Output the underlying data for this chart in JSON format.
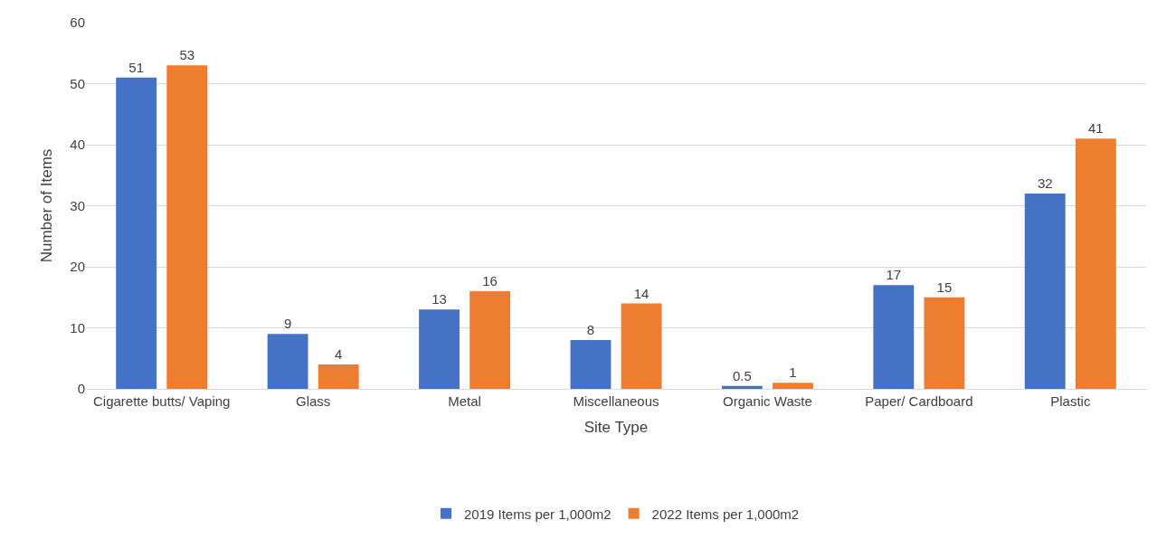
{
  "chart_data": {
    "type": "bar",
    "xlabel": "Site Type",
    "ylabel": "Number of Items",
    "categories": [
      "Cigarette butts/ Vaping",
      "Glass",
      "Metal",
      "Miscellaneous",
      "Organic Waste",
      "Paper/ Cardboard",
      "Plastic"
    ],
    "series": [
      {
        "name": "2019 Items per 1,000m2",
        "color": "#4472c4",
        "values": [
          51,
          9,
          13,
          8,
          0.5,
          17,
          32
        ]
      },
      {
        "name": "2022 Items per 1,000m2",
        "color": "#ed7d31",
        "values": [
          53,
          4,
          16,
          14,
          1,
          15,
          41
        ]
      }
    ],
    "ylim": [
      0,
      60
    ],
    "yticks": [
      0,
      10,
      20,
      30,
      40,
      50,
      60
    ],
    "grid": "y",
    "legend": "bottom",
    "data_labels": true
  }
}
